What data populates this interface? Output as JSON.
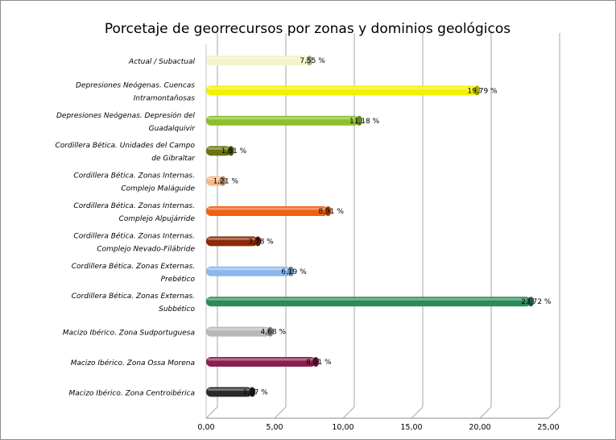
{
  "chart_data": {
    "type": "bar",
    "orientation": "horizontal",
    "title": "Porcetaje de georrecursos por zonas y dominios geológicos",
    "categories": [
      [
        "Actual / Subactual"
      ],
      [
        "Depresiones Neógenas. Cuencas",
        "Intramontañosas"
      ],
      [
        "Depresiones Neógenas. Depresión del",
        "Guadalquivir"
      ],
      [
        "Cordillera Bética. Unidades del Campo",
        "de Gibraltar"
      ],
      [
        "Cordillera Bética. Zonas Internas.",
        "Complejo Maláguide"
      ],
      [
        "Cordillera Bética. Zonas Internas.",
        "Complejo Alpujárride"
      ],
      [
        "Cordillera Bética. Zonas Internas.",
        "Complejo Nevado-Filábride"
      ],
      [
        "Cordillera Bética. Zonas Externas.",
        "Prebético"
      ],
      [
        "Cordillera Bética. Zonas Externas.",
        "Subbético"
      ],
      [
        "Macizo Ibérico. Zona Sudportuguesa"
      ],
      [
        "Macizo Ibérico. Zona Ossa Morena"
      ],
      [
        "Macizo Ibérico. Zona Centroibérica"
      ]
    ],
    "values": [
      7.55,
      19.79,
      11.18,
      1.81,
      1.21,
      8.91,
      3.78,
      6.19,
      23.72,
      4.68,
      8.01,
      3.37
    ],
    "value_labels": [
      "7,55 %",
      "19,79 %",
      "11,18 %",
      "1,81 %",
      "1,21 %",
      "8,91 %",
      "3,78 %",
      "6,19 %",
      "23,72 %",
      "4,68 %",
      "8,01 %",
      "3,37 %"
    ],
    "colors": [
      "#f5f3c8",
      "#f2f200",
      "#8ebf2a",
      "#6b7310",
      "#f5b98a",
      "#f06010",
      "#8a2a08",
      "#8ab8ee",
      "#2a8a5a",
      "#b8b8b8",
      "#8a2050",
      "#2a2a2a"
    ],
    "xlim": [
      0,
      25
    ],
    "xticks": [
      "0,00",
      "5,00",
      "10,00",
      "15,00",
      "20,00",
      "25,00"
    ],
    "grid": true,
    "legend": "none",
    "xlabel": "",
    "ylabel": ""
  }
}
